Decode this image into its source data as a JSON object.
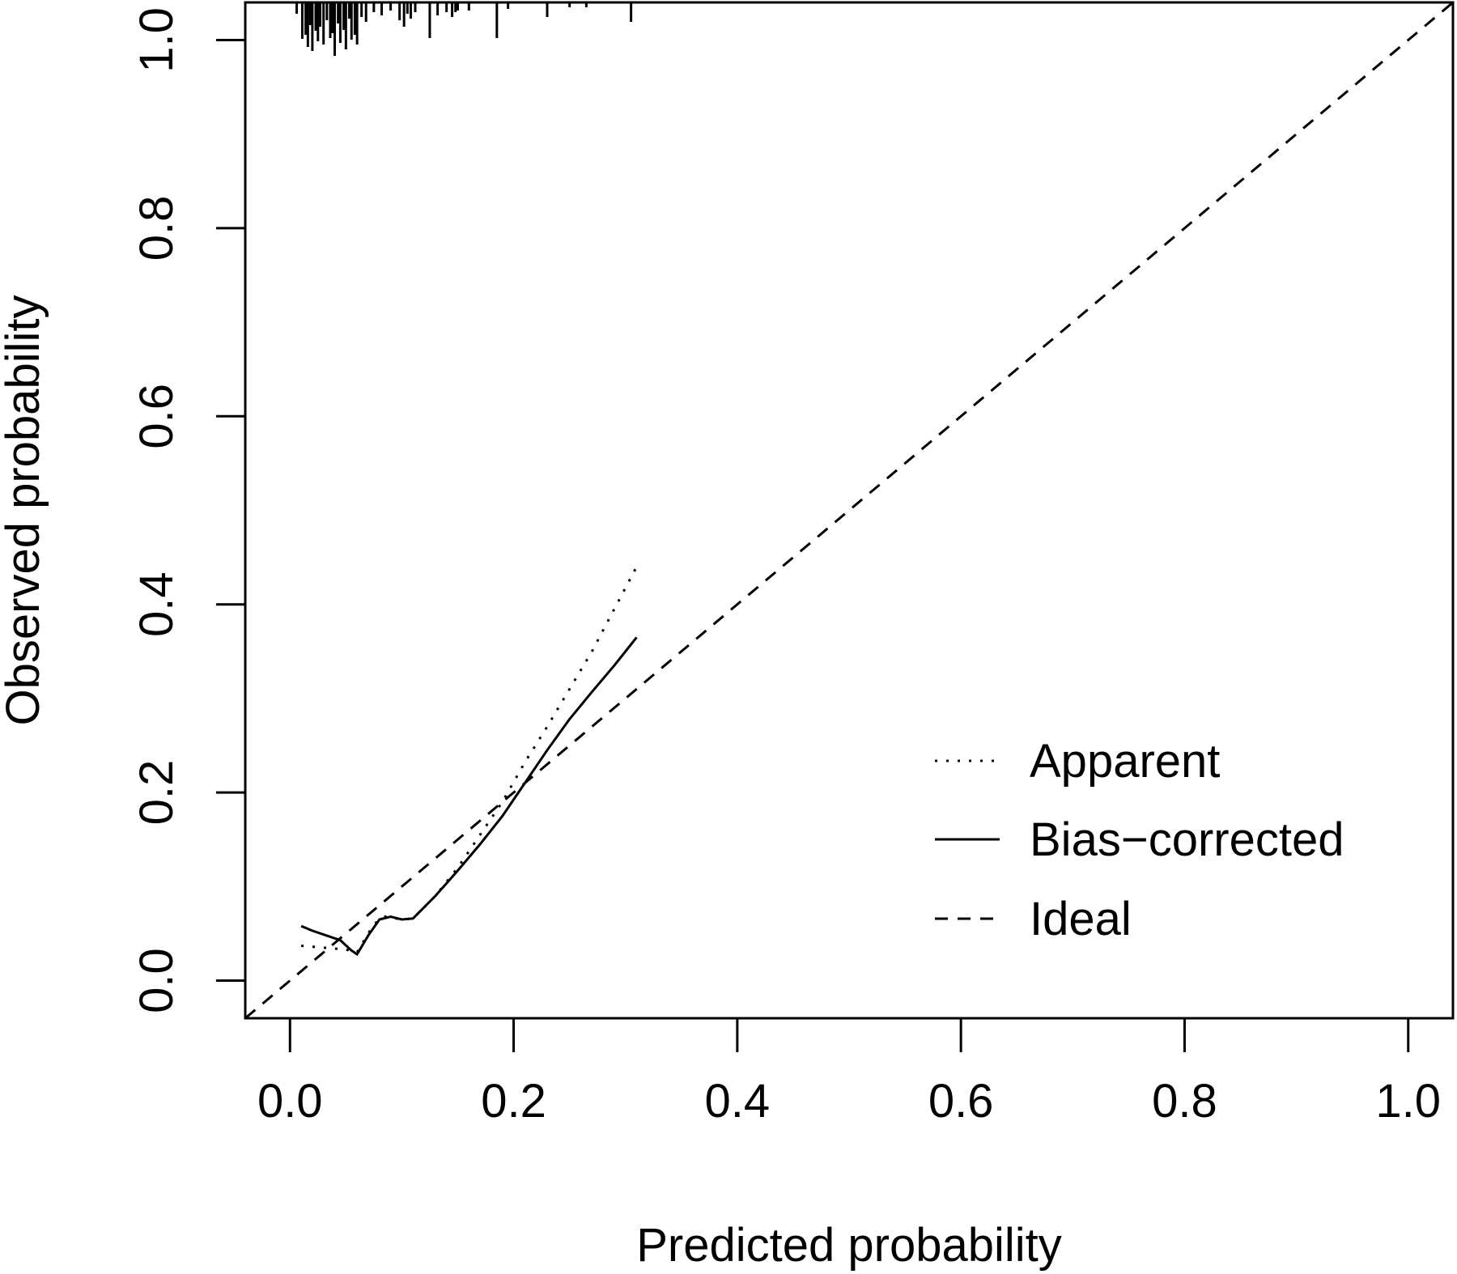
{
  "chart_data": {
    "type": "line",
    "xlabel": "Predicted probability",
    "ylabel": "Observed probability",
    "xlim": [
      -0.04,
      1.04
    ],
    "ylim": [
      -0.04,
      1.04
    ],
    "x_ticks": [
      "0.0",
      "0.2",
      "0.4",
      "0.6",
      "0.8",
      "1.0"
    ],
    "y_ticks": [
      "0.0",
      "0.2",
      "0.4",
      "0.6",
      "0.8",
      "1.0"
    ],
    "grid": false,
    "legend_position": "bottom-right",
    "series": [
      {
        "name": "Apparent",
        "style": "dotted",
        "x": [
          0.01,
          0.03,
          0.05,
          0.06,
          0.075,
          0.085,
          0.1,
          0.11,
          0.13,
          0.15,
          0.17,
          0.19,
          0.21,
          0.23,
          0.25,
          0.27,
          0.29,
          0.31
        ],
        "y": [
          0.037,
          0.035,
          0.033,
          0.03,
          0.06,
          0.068,
          0.065,
          0.066,
          0.09,
          0.12,
          0.155,
          0.19,
          0.232,
          0.27,
          0.31,
          0.35,
          0.395,
          0.44
        ]
      },
      {
        "name": "Bias−corrected",
        "style": "solid",
        "x": [
          0.01,
          0.02,
          0.035,
          0.045,
          0.055,
          0.06,
          0.07,
          0.08,
          0.09,
          0.1,
          0.11,
          0.13,
          0.15,
          0.17,
          0.19,
          0.21,
          0.23,
          0.25,
          0.27,
          0.29,
          0.31
        ],
        "y": [
          0.058,
          0.053,
          0.047,
          0.043,
          0.032,
          0.028,
          0.048,
          0.065,
          0.068,
          0.065,
          0.066,
          0.09,
          0.117,
          0.145,
          0.175,
          0.21,
          0.245,
          0.278,
          0.307,
          0.335,
          0.365
        ]
      },
      {
        "name": "Ideal",
        "style": "dashed",
        "x": [
          -0.04,
          1.04
        ],
        "y": [
          -0.04,
          1.04
        ]
      }
    ],
    "rug_top": [
      0.006,
      0.011,
      0.014,
      0.016,
      0.018,
      0.02,
      0.023,
      0.025,
      0.027,
      0.03,
      0.033,
      0.036,
      0.038,
      0.04,
      0.043,
      0.045,
      0.048,
      0.05,
      0.053,
      0.055,
      0.058,
      0.06,
      0.064,
      0.068,
      0.075,
      0.082,
      0.09,
      0.098,
      0.102,
      0.105,
      0.108,
      0.112,
      0.125,
      0.132,
      0.14,
      0.145,
      0.148,
      0.15,
      0.16,
      0.185,
      0.195,
      0.23,
      0.25,
      0.265,
      0.305
    ]
  }
}
